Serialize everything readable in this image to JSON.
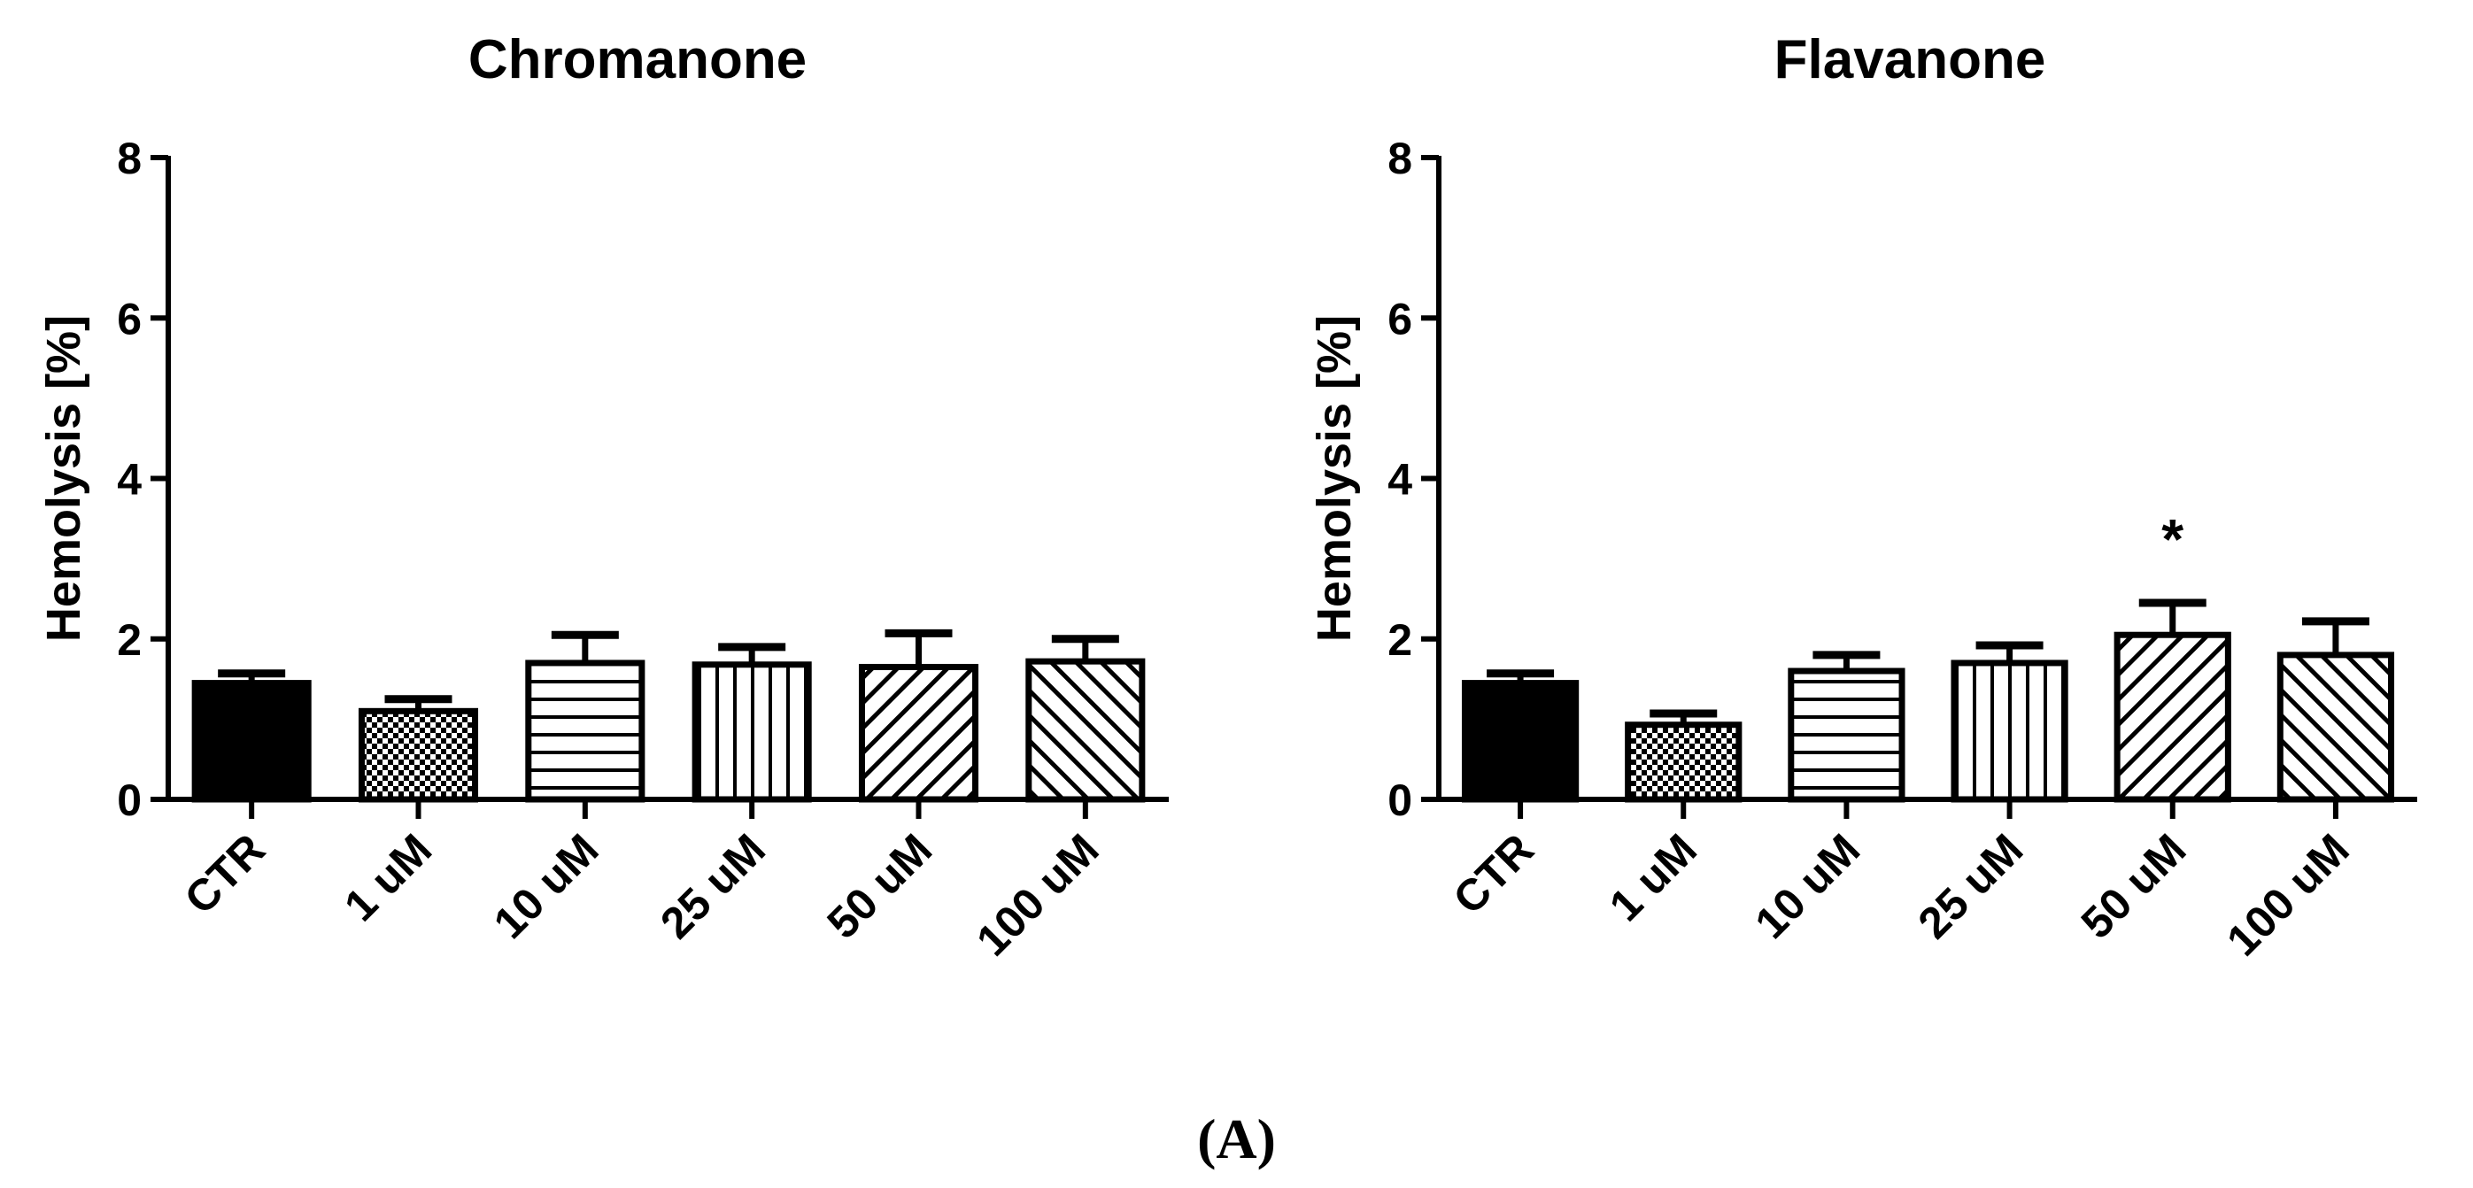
{
  "caption": "(A)",
  "colors": {
    "ink": "#000000",
    "background": "#ffffff"
  },
  "chart_data": [
    {
      "type": "bar",
      "title": "Chromanone",
      "ylabel": "Hemolysis [%]",
      "xlabel": "",
      "ylim": [
        0,
        8
      ],
      "yticks": [
        "0",
        "2",
        "4",
        "6",
        "8"
      ],
      "categories": [
        "CTR",
        "1 uM",
        "10 uM",
        "25 uM",
        "50 uM",
        "100 uM"
      ],
      "values": [
        1.45,
        1.1,
        1.7,
        1.68,
        1.65,
        1.72
      ],
      "errors": [
        0.12,
        0.15,
        0.35,
        0.22,
        0.42,
        0.28
      ],
      "fill_patterns": [
        "solid",
        "checker",
        "horizontal",
        "vertical",
        "diagonal-up",
        "diagonal-down"
      ],
      "annotations": [
        "",
        "",
        "",
        "",
        "",
        ""
      ],
      "grid": false
    },
    {
      "type": "bar",
      "title": "Flavanone",
      "ylabel": "Hemolysis [%]",
      "xlabel": "",
      "ylim": [
        0,
        8
      ],
      "yticks": [
        "0",
        "2",
        "4",
        "6",
        "8"
      ],
      "categories": [
        "CTR",
        "1 uM",
        "10 uM",
        "25 uM",
        "50 uM",
        "100 uM"
      ],
      "values": [
        1.45,
        0.93,
        1.6,
        1.7,
        2.05,
        1.8
      ],
      "errors": [
        0.12,
        0.14,
        0.2,
        0.22,
        0.4,
        0.42
      ],
      "fill_patterns": [
        "solid",
        "checker",
        "horizontal",
        "vertical",
        "diagonal-up",
        "diagonal-down"
      ],
      "annotations": [
        "",
        "",
        "",
        "",
        "*",
        ""
      ],
      "grid": false
    }
  ]
}
